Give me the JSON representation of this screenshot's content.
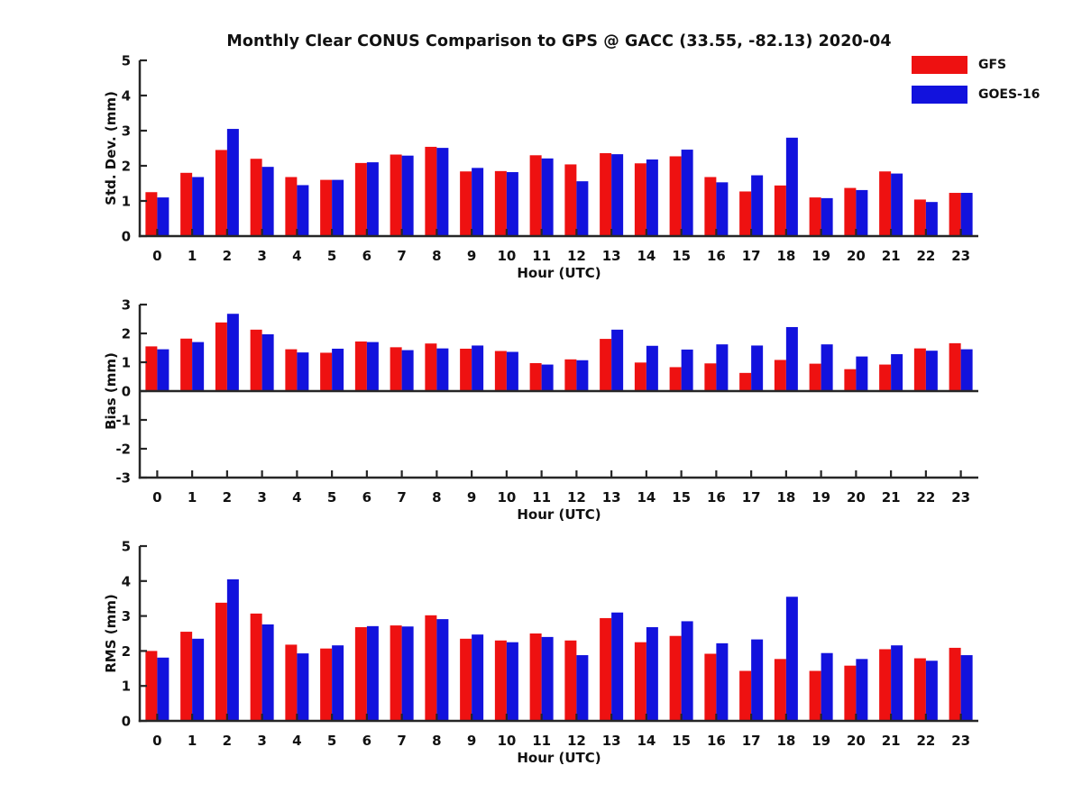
{
  "figure": {
    "title": "Monthly Clear CONUS Comparison to GPS @ GACC (33.55, -82.13) 2020-04"
  },
  "legend": {
    "position": "top-right",
    "items": [
      {
        "label": "GFS",
        "color": "#ee1111"
      },
      {
        "label": "GOES-16",
        "color": "#1212dd"
      }
    ]
  },
  "colors": {
    "gfs": "#ee1111",
    "goes16": "#1212dd",
    "axis": "#262626",
    "text": "#111111"
  },
  "chart_data": [
    {
      "id": "stddev",
      "type": "bar",
      "title": "",
      "xlabel": "Hour (UTC)",
      "ylabel": "Std. Dev. (mm)",
      "ylim": [
        0,
        5
      ],
      "yticks": [
        0,
        1,
        2,
        3,
        4,
        5
      ],
      "grid": false,
      "categories": [
        "0",
        "1",
        "2",
        "3",
        "4",
        "5",
        "6",
        "7",
        "8",
        "9",
        "10",
        "11",
        "12",
        "13",
        "14",
        "15",
        "16",
        "17",
        "18",
        "19",
        "20",
        "21",
        "22",
        "23"
      ],
      "series": [
        {
          "name": "GFS",
          "color": "#ee1111",
          "values": [
            1.25,
            1.8,
            2.45,
            2.2,
            1.68,
            1.6,
            2.08,
            2.32,
            2.54,
            1.84,
            1.85,
            2.3,
            2.04,
            2.36,
            2.07,
            2.27,
            1.68,
            1.27,
            1.44,
            1.1,
            1.37,
            1.84,
            1.04,
            1.23
          ]
        },
        {
          "name": "GOES-16",
          "color": "#1212dd",
          "values": [
            1.1,
            1.68,
            3.05,
            1.97,
            1.45,
            1.6,
            2.1,
            2.29,
            2.51,
            1.94,
            1.82,
            2.21,
            1.56,
            2.33,
            2.18,
            2.46,
            1.53,
            1.73,
            2.8,
            1.08,
            1.31,
            1.78,
            0.97,
            1.23
          ]
        }
      ]
    },
    {
      "id": "bias",
      "type": "bar",
      "title": "",
      "xlabel": "Hour (UTC)",
      "ylabel": "Bias (mm)",
      "ylim": [
        -3,
        3
      ],
      "yticks": [
        -3,
        -2,
        -1,
        0,
        1,
        2,
        3
      ],
      "grid": false,
      "categories": [
        "0",
        "1",
        "2",
        "3",
        "4",
        "5",
        "6",
        "7",
        "8",
        "9",
        "10",
        "11",
        "12",
        "13",
        "14",
        "15",
        "16",
        "17",
        "18",
        "19",
        "20",
        "21",
        "22",
        "23"
      ],
      "series": [
        {
          "name": "GFS",
          "color": "#ee1111",
          "values": [
            1.55,
            1.82,
            2.38,
            2.13,
            1.45,
            1.33,
            1.72,
            1.52,
            1.65,
            1.47,
            1.39,
            0.97,
            1.1,
            1.81,
            0.99,
            0.83,
            0.96,
            0.63,
            1.08,
            0.95,
            0.76,
            0.92,
            1.48,
            1.66
          ]
        },
        {
          "name": "GOES-16",
          "color": "#1212dd",
          "values": [
            1.45,
            1.7,
            2.68,
            1.97,
            1.34,
            1.47,
            1.7,
            1.42,
            1.48,
            1.58,
            1.36,
            0.92,
            1.07,
            2.13,
            1.57,
            1.44,
            1.62,
            1.58,
            2.22,
            1.62,
            1.2,
            1.28,
            1.4,
            1.45
          ]
        }
      ]
    },
    {
      "id": "rms",
      "type": "bar",
      "title": "",
      "xlabel": "Hour (UTC)",
      "ylabel": "RMS (mm)",
      "ylim": [
        0,
        5
      ],
      "yticks": [
        0,
        1,
        2,
        3,
        4,
        5
      ],
      "grid": false,
      "categories": [
        "0",
        "1",
        "2",
        "3",
        "4",
        "5",
        "6",
        "7",
        "8",
        "9",
        "10",
        "11",
        "12",
        "13",
        "14",
        "15",
        "16",
        "17",
        "18",
        "19",
        "20",
        "21",
        "22",
        "23"
      ],
      "series": [
        {
          "name": "GFS",
          "color": "#ee1111",
          "values": [
            2.0,
            2.55,
            3.38,
            3.07,
            2.18,
            2.07,
            2.68,
            2.73,
            3.02,
            2.35,
            2.3,
            2.5,
            2.3,
            2.94,
            2.25,
            2.43,
            1.92,
            1.43,
            1.77,
            1.43,
            1.58,
            2.05,
            1.79,
            2.09
          ]
        },
        {
          "name": "GOES-16",
          "color": "#1212dd",
          "values": [
            1.81,
            2.35,
            4.05,
            2.76,
            1.93,
            2.16,
            2.71,
            2.7,
            2.91,
            2.47,
            2.25,
            2.4,
            1.88,
            3.1,
            2.68,
            2.85,
            2.22,
            2.33,
            3.55,
            1.94,
            1.77,
            2.16,
            1.72,
            1.88
          ]
        }
      ]
    }
  ]
}
